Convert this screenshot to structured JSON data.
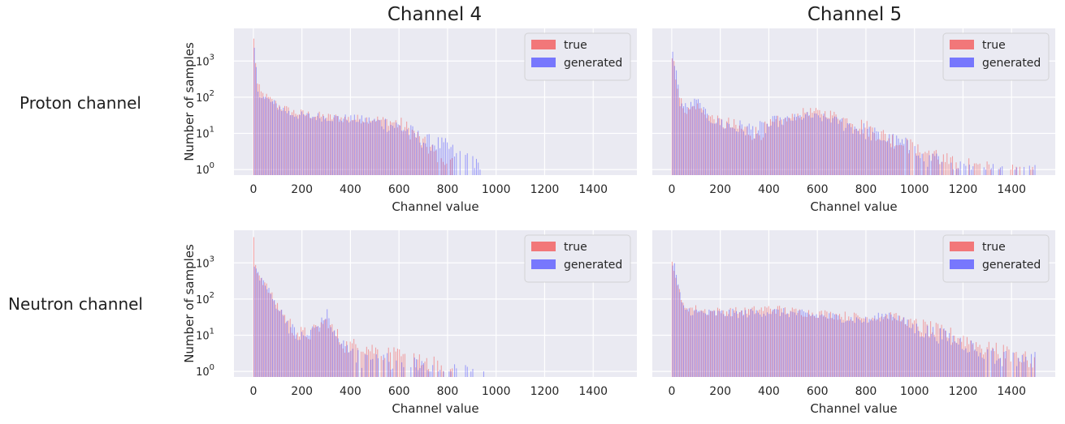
{
  "row_labels": [
    "Proton channel",
    "Neutron channel"
  ],
  "col_titles": [
    "Channel 4",
    "Channel 5"
  ],
  "xlabel": "Channel value",
  "ylabel": "Number of samples",
  "colors": {
    "true": "#f45a5a",
    "generated": "#5a5aff",
    "panel_bg": "#eaeaf2",
    "grid": "#ffffff"
  },
  "chart_data": [
    {
      "type": "bar",
      "subtype": "histogram",
      "row": "Proton channel",
      "title": "Channel 4",
      "xlabel": "Channel value",
      "ylabel": "Number of samples",
      "xlim": [
        -80,
        1580
      ],
      "xticks": [
        0,
        200,
        400,
        600,
        800,
        1000,
        1200,
        1400
      ],
      "yscale": "log",
      "ylim": [
        0.7,
        8000
      ],
      "ytick_labels": [
        "10^0",
        "10^1",
        "10^2",
        "10^3"
      ],
      "legend": "top-right",
      "grid": true,
      "bin_width": 7.5,
      "series": [
        {
          "name": "true",
          "anchors": [
            [
              0,
              3800
            ],
            [
              8,
              900
            ],
            [
              15,
              220
            ],
            [
              30,
              130
            ],
            [
              60,
              90
            ],
            [
              100,
              60
            ],
            [
              150,
              40
            ],
            [
              200,
              35
            ],
            [
              300,
              28
            ],
            [
              400,
              25
            ],
            [
              500,
              25
            ],
            [
              580,
              20
            ],
            [
              620,
              15
            ],
            [
              660,
              10
            ],
            [
              700,
              5
            ],
            [
              740,
              3
            ],
            [
              780,
              2
            ],
            [
              800,
              1.5
            ],
            [
              820,
              0
            ]
          ]
        },
        {
          "name": "generated",
          "anchors": [
            [
              0,
              2200
            ],
            [
              8,
              500
            ],
            [
              15,
              160
            ],
            [
              30,
              110
            ],
            [
              60,
              80
            ],
            [
              100,
              55
            ],
            [
              150,
              35
            ],
            [
              200,
              30
            ],
            [
              300,
              28
            ],
            [
              400,
              25
            ],
            [
              500,
              22
            ],
            [
              600,
              15
            ],
            [
              650,
              10
            ],
            [
              700,
              6
            ],
            [
              760,
              5
            ],
            [
              800,
              4
            ],
            [
              850,
              2
            ],
            [
              900,
              1.5
            ],
            [
              950,
              1
            ],
            [
              960,
              0
            ]
          ]
        }
      ]
    },
    {
      "type": "bar",
      "subtype": "histogram",
      "row": "Proton channel",
      "title": "Channel 5",
      "xlabel": "Channel value",
      "ylabel": "",
      "xlim": [
        -80,
        1580
      ],
      "xticks": [
        0,
        200,
        400,
        600,
        800,
        1000,
        1200,
        1400
      ],
      "yscale": "log",
      "ylim": [
        0.7,
        8000
      ],
      "legend": "top-right",
      "grid": true,
      "bin_width": 7.5,
      "series": [
        {
          "name": "true",
          "anchors": [
            [
              0,
              1200
            ],
            [
              8,
              1000
            ],
            [
              15,
              400
            ],
            [
              30,
              90
            ],
            [
              60,
              40
            ],
            [
              100,
              60
            ],
            [
              150,
              30
            ],
            [
              250,
              15
            ],
            [
              350,
              10
            ],
            [
              450,
              20
            ],
            [
              550,
              40
            ],
            [
              650,
              35
            ],
            [
              750,
              20
            ],
            [
              850,
              10
            ],
            [
              950,
              5
            ],
            [
              1050,
              3
            ],
            [
              1150,
              1.5
            ],
            [
              1300,
              1
            ],
            [
              1500,
              0.8
            ]
          ]
        },
        {
          "name": "generated",
          "anchors": [
            [
              0,
              1500
            ],
            [
              8,
              900
            ],
            [
              15,
              500
            ],
            [
              30,
              70
            ],
            [
              60,
              50
            ],
            [
              100,
              80
            ],
            [
              150,
              25
            ],
            [
              250,
              15
            ],
            [
              350,
              12
            ],
            [
              450,
              22
            ],
            [
              550,
              30
            ],
            [
              650,
              25
            ],
            [
              750,
              15
            ],
            [
              850,
              8
            ],
            [
              950,
              5
            ],
            [
              1050,
              2
            ],
            [
              1150,
              1.5
            ],
            [
              1300,
              1
            ],
            [
              1500,
              0.8
            ]
          ]
        }
      ]
    },
    {
      "type": "bar",
      "subtype": "histogram",
      "row": "Neutron channel",
      "title": "",
      "xlabel": "Channel value",
      "ylabel": "Number of samples",
      "xlim": [
        -80,
        1580
      ],
      "xticks": [
        0,
        200,
        400,
        600,
        800,
        1000,
        1200,
        1400
      ],
      "yscale": "log",
      "ylim": [
        0.7,
        8000
      ],
      "ytick_labels": [
        "10^0",
        "10^1",
        "10^2",
        "10^3"
      ],
      "legend": "top-right",
      "grid": true,
      "bin_width": 7.5,
      "series": [
        {
          "name": "true",
          "anchors": [
            [
              0,
              5000
            ],
            [
              8,
              900
            ],
            [
              20,
              500
            ],
            [
              40,
              300
            ],
            [
              80,
              100
            ],
            [
              120,
              40
            ],
            [
              160,
              15
            ],
            [
              200,
              10
            ],
            [
              250,
              12
            ],
            [
              280,
              20
            ],
            [
              300,
              25
            ],
            [
              330,
              12
            ],
            [
              380,
              5
            ],
            [
              450,
              5
            ],
            [
              550,
              3
            ],
            [
              650,
              2
            ],
            [
              750,
              1.5
            ],
            [
              800,
              1
            ],
            [
              820,
              0
            ]
          ]
        },
        {
          "name": "generated",
          "anchors": [
            [
              0,
              800
            ],
            [
              8,
              600
            ],
            [
              20,
              450
            ],
            [
              40,
              280
            ],
            [
              80,
              90
            ],
            [
              120,
              35
            ],
            [
              160,
              12
            ],
            [
              200,
              8
            ],
            [
              250,
              15
            ],
            [
              280,
              25
            ],
            [
              300,
              40
            ],
            [
              330,
              10
            ],
            [
              380,
              4
            ],
            [
              450,
              2
            ],
            [
              550,
              2
            ],
            [
              650,
              1.5
            ],
            [
              750,
              1
            ],
            [
              850,
              1
            ],
            [
              950,
              0.8
            ]
          ]
        }
      ]
    },
    {
      "type": "bar",
      "subtype": "histogram",
      "row": "Neutron channel",
      "title": "",
      "xlabel": "Channel value",
      "ylabel": "",
      "xlim": [
        -80,
        1580
      ],
      "xticks": [
        0,
        200,
        400,
        600,
        800,
        1000,
        1200,
        1400
      ],
      "yscale": "log",
      "ylim": [
        0.7,
        8000
      ],
      "legend": "top-right",
      "grid": true,
      "bin_width": 7.5,
      "series": [
        {
          "name": "true",
          "anchors": [
            [
              0,
              1000
            ],
            [
              8,
              800
            ],
            [
              20,
              300
            ],
            [
              40,
              70
            ],
            [
              80,
              55
            ],
            [
              150,
              45
            ],
            [
              300,
              45
            ],
            [
              400,
              55
            ],
            [
              500,
              45
            ],
            [
              600,
              40
            ],
            [
              700,
              35
            ],
            [
              800,
              30
            ],
            [
              900,
              35
            ],
            [
              1000,
              20
            ],
            [
              1100,
              12
            ],
            [
              1200,
              8
            ],
            [
              1300,
              4
            ],
            [
              1400,
              3
            ],
            [
              1500,
              2
            ]
          ]
        },
        {
          "name": "generated",
          "anchors": [
            [
              0,
              900
            ],
            [
              8,
              1000
            ],
            [
              20,
              250
            ],
            [
              40,
              60
            ],
            [
              80,
              45
            ],
            [
              150,
              40
            ],
            [
              300,
              40
            ],
            [
              400,
              45
            ],
            [
              500,
              40
            ],
            [
              600,
              35
            ],
            [
              700,
              30
            ],
            [
              800,
              25
            ],
            [
              900,
              40
            ],
            [
              1000,
              15
            ],
            [
              1100,
              10
            ],
            [
              1200,
              6
            ],
            [
              1300,
              3
            ],
            [
              1400,
              2
            ],
            [
              1500,
              2
            ]
          ]
        }
      ]
    }
  ]
}
